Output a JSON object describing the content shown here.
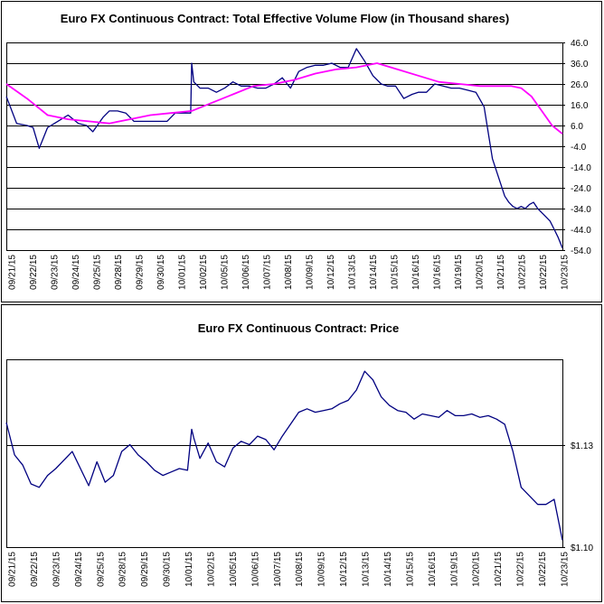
{
  "chart_data": [
    {
      "type": "line",
      "title": "Euro FX Continuous Contract: Total Effective Volume Flow (in Thousand shares)",
      "ylim": [
        -54,
        46
      ],
      "y_ticks": [
        "46.0",
        "36.0",
        "26.0",
        "16.0",
        "6.0",
        "-4.0",
        "-14.0",
        "-24.0",
        "-34.0",
        "-44.0",
        "-54.0"
      ],
      "x_tick_labels": [
        "09/21/15",
        "09/22/15",
        "09/23/15",
        "09/24/15",
        "09/25/15",
        "09/28/15",
        "09/29/15",
        "09/30/15",
        "10/01/15",
        "10/02/15",
        "10/05/15",
        "10/06/15",
        "10/07/15",
        "10/08/15",
        "10/09/15",
        "10/12/15",
        "10/13/15",
        "10/14/15",
        "10/15/15",
        "10/16/15",
        "10/16/15",
        "10/19/15",
        "10/20/15",
        "10/21/15",
        "10/22/15",
        "10/22/15",
        "10/23/15"
      ],
      "grid": "horizontal",
      "series": [
        {
          "color": "#000080",
          "x": [
            0,
            0.5,
            1,
            1.3,
            1.6,
            2,
            2.5,
            3,
            3.5,
            3.9,
            4.2,
            4.7,
            5,
            5.4,
            5.8,
            6.2,
            6.6,
            7,
            7.4,
            7.8,
            8.2,
            8.6,
            8.95,
            9.0,
            9.1,
            9.4,
            9.8,
            10.2,
            10.6,
            11,
            11.4,
            11.8,
            12.2,
            12.6,
            13,
            13.4,
            13.8,
            14.2,
            14.6,
            15,
            15.4,
            15.8,
            16.2,
            16.6,
            17,
            17.4,
            17.8,
            18.2,
            18.5,
            18.9,
            19.3,
            19.7,
            20,
            20.4,
            20.8,
            21.2,
            21.6,
            22,
            22.4,
            22.8,
            23.2,
            23.6,
            24,
            24.2,
            24.4,
            24.6,
            24.8,
            25.0,
            25.2,
            25.4,
            25.6,
            25.8,
            26.0,
            26.2,
            26.4,
            26.6,
            26.8,
            27.0
          ],
          "y": [
            20,
            7,
            6,
            5,
            -5,
            5,
            8,
            11,
            7,
            6,
            3,
            10,
            13,
            13,
            12,
            8,
            8,
            8,
            8,
            8,
            12,
            12,
            12,
            36,
            27,
            24,
            24,
            22,
            24,
            27,
            25,
            25,
            24,
            24,
            26,
            29,
            24,
            32,
            34,
            35,
            35,
            36,
            34,
            34,
            43,
            37,
            30,
            26,
            25,
            25,
            19,
            21,
            22,
            22,
            26,
            25,
            24,
            24,
            23,
            22,
            15,
            -10,
            -22,
            -28,
            -31,
            -33,
            -34,
            -33,
            -34,
            -32,
            -31,
            -34,
            -36,
            -38,
            -40,
            -44,
            -48,
            -53
          ]
        },
        {
          "color": "#ff00ff",
          "x": [
            0,
            1,
            2,
            3,
            4,
            5,
            6,
            7,
            8,
            9,
            10,
            11,
            12,
            13,
            14,
            15,
            16,
            17,
            18,
            19,
            20,
            21,
            22,
            23,
            24,
            24.5,
            25,
            25.5,
            26,
            26.5,
            27
          ],
          "y": [
            26,
            19,
            11,
            9,
            8,
            7,
            9,
            11,
            12,
            13,
            17,
            21,
            25,
            26,
            28,
            31,
            33,
            34,
            36,
            33,
            30,
            27,
            26,
            25,
            25,
            25,
            24,
            20,
            13,
            6,
            2
          ]
        }
      ]
    },
    {
      "type": "line",
      "title": "Euro FX Continuous Contract: Price",
      "ylim": [
        1.1,
        1.155
      ],
      "y_ticks": [
        "$1.13",
        "$1.10"
      ],
      "x_tick_labels": [
        "09/21/15",
        "09/22/15",
        "09/23/15",
        "09/24/15",
        "09/25/15",
        "09/28/15",
        "09/29/15",
        "09/30/15",
        "10/01/15",
        "10/02/15",
        "10/05/15",
        "10/06/15",
        "10/07/15",
        "10/08/15",
        "10/09/15",
        "10/12/15",
        "10/13/15",
        "10/14/15",
        "10/15/15",
        "10/16/15",
        "10/19/15",
        "10/20/15",
        "10/21/15",
        "10/22/15",
        "10/22/15",
        "10/23/15"
      ],
      "grid": "horizontal",
      "series": [
        {
          "color": "#000080",
          "x": [
            0,
            0.4,
            0.8,
            1.2,
            1.6,
            2,
            2.4,
            2.8,
            3.2,
            3.6,
            4,
            4.4,
            4.8,
            5.2,
            5.6,
            6,
            6.4,
            6.8,
            7.2,
            7.6,
            8,
            8.4,
            8.8,
            9.0,
            9.1,
            9.4,
            9.8,
            10.2,
            10.6,
            11,
            11.4,
            11.8,
            12.2,
            12.6,
            13,
            13.4,
            13.8,
            14.2,
            14.6,
            15,
            15.4,
            15.8,
            16.2,
            16.6,
            17,
            17.4,
            17.8,
            18.2,
            18.6,
            19,
            19.4,
            19.8,
            20.2,
            20.6,
            21,
            21.4,
            21.8,
            22.2,
            22.6,
            23,
            23.4,
            23.8,
            24.2,
            24.6,
            25,
            25.4,
            25.8,
            26.2,
            26.6,
            27.0
          ],
          "y": [
            1.1365,
            1.127,
            1.124,
            1.1185,
            1.1175,
            1.121,
            1.123,
            1.1255,
            1.128,
            1.123,
            1.118,
            1.125,
            1.119,
            1.121,
            1.128,
            1.13,
            1.127,
            1.125,
            1.1225,
            1.121,
            1.122,
            1.123,
            1.1225,
            1.1345,
            1.132,
            1.126,
            1.1305,
            1.125,
            1.1235,
            1.129,
            1.131,
            1.13,
            1.1325,
            1.1315,
            1.1285,
            1.1325,
            1.136,
            1.1395,
            1.1405,
            1.1395,
            1.14,
            1.1405,
            1.142,
            1.143,
            1.146,
            1.1515,
            1.149,
            1.144,
            1.1415,
            1.14,
            1.1395,
            1.1375,
            1.139,
            1.1385,
            1.138,
            1.14,
            1.1385,
            1.1385,
            1.139,
            1.138,
            1.1385,
            1.1375,
            1.136,
            1.128,
            1.1175,
            1.115,
            1.1125,
            1.1125,
            1.114,
            1.102
          ]
        }
      ]
    }
  ]
}
